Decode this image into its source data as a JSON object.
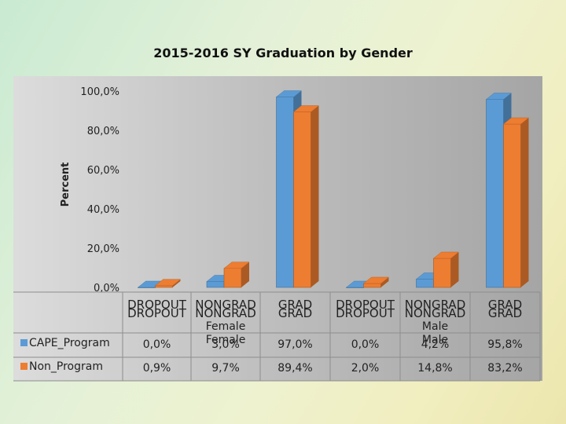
{
  "chart_data": {
    "type": "bar",
    "title": "2015-2016 SY Graduation by Gender",
    "ylabel": "Percent",
    "ylim": [
      0,
      100
    ],
    "yticks": [
      "0,0%",
      "20,0%",
      "40,0%",
      "60,0%",
      "80,0%",
      "100,0%"
    ],
    "categories": [
      "DROPOUT",
      "NONGRAD",
      "GRAD",
      "DROPOUT",
      "NONGRAD",
      "GRAD"
    ],
    "groups": [
      "Female",
      "Male"
    ],
    "series": [
      {
        "name": "CAPE_Program",
        "values": [
          0.0,
          3.0,
          97.0,
          0.0,
          4.2,
          95.8
        ],
        "labels": [
          "0,0%",
          "3,0%",
          "97,0%",
          "0,0%",
          "4,2%",
          "95,8%"
        ],
        "color": "#5b9bd5"
      },
      {
        "name": "Non_Program",
        "values": [
          0.9,
          9.7,
          89.4,
          2.0,
          14.8,
          83.2
        ],
        "labels": [
          "0,9%",
          "9,7%",
          "89,4%",
          "2,0%",
          "14,8%",
          "83,2%"
        ],
        "color": "#ed7d31"
      }
    ],
    "grid": false,
    "legend": "data-table"
  }
}
